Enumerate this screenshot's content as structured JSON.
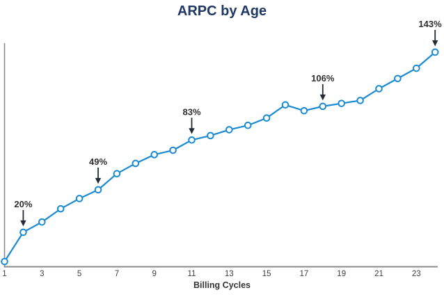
{
  "chart_data": {
    "type": "line",
    "title": "ARPC by Age",
    "xlabel": "Billing Cycles",
    "ylabel": "",
    "x": [
      1,
      2,
      3,
      4,
      5,
      6,
      7,
      8,
      9,
      10,
      11,
      12,
      13,
      14,
      15,
      16,
      17,
      18,
      19,
      20,
      21,
      22,
      23,
      24
    ],
    "values": [
      0,
      20,
      27,
      36,
      43,
      49,
      60,
      67,
      73,
      76,
      83,
      86,
      90,
      93,
      98,
      107,
      103,
      106,
      108,
      110,
      118,
      125,
      132,
      143
    ],
    "unit": "%",
    "x_ticks": [
      1,
      3,
      5,
      7,
      9,
      11,
      13,
      15,
      17,
      19,
      21,
      23
    ],
    "xlim": [
      1,
      24
    ],
    "ylim": [
      0,
      150
    ],
    "grid": false,
    "legend": false,
    "y_axis_labels_shown": false,
    "annotations": [
      {
        "x": 2,
        "label": "20%"
      },
      {
        "x": 6,
        "label": "49%"
      },
      {
        "x": 11,
        "label": "83%"
      },
      {
        "x": 18,
        "label": "106%"
      },
      {
        "x": 24,
        "label": "143%"
      }
    ],
    "colors": {
      "line": "#1b8ad1",
      "marker_fill": "#ffffff",
      "axis": "#8a8a8a",
      "annotation": "#222b36",
      "title": "#1f3864",
      "tick_text": "#3d3d3d"
    }
  }
}
